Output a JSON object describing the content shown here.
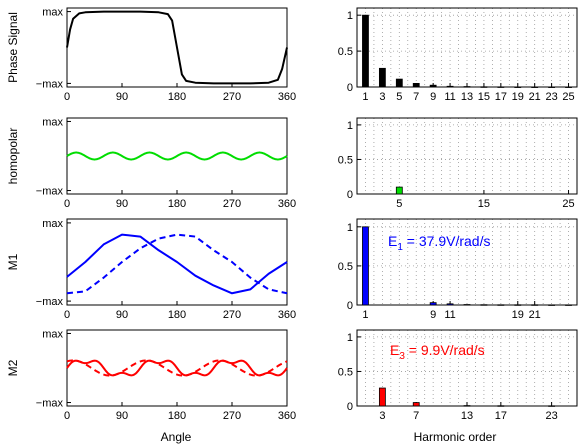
{
  "chart_data": [
    {
      "type": "line",
      "ylabel": "Phase Signal",
      "xlim": [
        0,
        360
      ],
      "xticks": [
        "0",
        "90",
        "180",
        "270",
        "360"
      ],
      "yticks": [
        "max",
        "−max"
      ],
      "grid": false,
      "series": [
        {
          "color": "#000000",
          "style": "solid",
          "x": [
            0,
            5,
            10,
            20,
            30,
            60,
            90,
            120,
            150,
            165,
            172,
            180,
            188,
            195,
            210,
            240,
            270,
            300,
            330,
            345,
            352,
            360
          ],
          "y": [
            0.0,
            0.5,
            0.8,
            0.95,
            0.98,
            1.0,
            1.0,
            1.0,
            0.98,
            0.93,
            0.75,
            0.0,
            -0.75,
            -0.93,
            -0.98,
            -1.0,
            -1.0,
            -1.0,
            -0.98,
            -0.9,
            -0.6,
            0.0
          ]
        }
      ]
    },
    {
      "type": "bar",
      "xticks": [
        "1",
        "3",
        "5",
        "7",
        "9",
        "11",
        "13",
        "15",
        "17",
        "19",
        "21",
        "23",
        "25"
      ],
      "yticks": [
        "0",
        "0.5",
        "1"
      ],
      "ylim": [
        0,
        1.1
      ],
      "grid": true,
      "series": [
        {
          "color": "#000000",
          "x": [
            1,
            3,
            5,
            7,
            9,
            11,
            13,
            15,
            17,
            19,
            21,
            23,
            25
          ],
          "values": [
            1.0,
            0.26,
            0.11,
            0.05,
            0.025,
            0.01,
            0.006,
            0.003,
            0.002,
            0.001,
            0.001,
            0.001,
            0.001
          ]
        }
      ]
    },
    {
      "type": "line",
      "ylabel": "homopolar",
      "xlim": [
        0,
        360
      ],
      "xticks": [
        "0",
        "90",
        "180",
        "270",
        "360"
      ],
      "yticks": [
        "max",
        "−max"
      ],
      "grid": false,
      "series": [
        {
          "color": "#00dd00",
          "style": "solid",
          "offset": 0.0,
          "amplitude": 0.1,
          "harmonic": 6
        }
      ]
    },
    {
      "type": "bar",
      "xticks": [
        "5",
        "15",
        "25"
      ],
      "yticks": [
        "0",
        "0.5",
        "1"
      ],
      "ylim": [
        0,
        1.1
      ],
      "grid": true,
      "series": [
        {
          "color": "#00dd00",
          "x": [
            5
          ],
          "values": [
            0.1
          ]
        }
      ]
    },
    {
      "type": "line",
      "ylabel": "M1",
      "xlim": [
        0,
        360
      ],
      "xticks": [
        "0",
        "90",
        "180",
        "270",
        "360"
      ],
      "yticks": [
        "max",
        "−max"
      ],
      "grid": false,
      "series": [
        {
          "color": "#0000ff",
          "style": "solid",
          "x": [
            0,
            30,
            60,
            90,
            120,
            150,
            180,
            210,
            240,
            270,
            300,
            330,
            360
          ],
          "y": [
            -0.38,
            0.0,
            0.45,
            0.7,
            0.65,
            0.3,
            0.0,
            -0.35,
            -0.6,
            -0.8,
            -0.7,
            -0.3,
            0.0
          ]
        },
        {
          "color": "#0000ff",
          "style": "dashed",
          "x": [
            0,
            30,
            60,
            90,
            120,
            150,
            180,
            210,
            240,
            270,
            300,
            330,
            360
          ],
          "y": [
            -0.8,
            -0.75,
            -0.4,
            0.0,
            0.35,
            0.6,
            0.7,
            0.65,
            0.3,
            0.0,
            -0.4,
            -0.7,
            -0.8
          ]
        }
      ]
    },
    {
      "type": "bar",
      "xticks": [
        "1",
        "9",
        "11",
        "19",
        "21"
      ],
      "yticks": [
        "0",
        "0.5",
        "1"
      ],
      "ylim": [
        0,
        1.1
      ],
      "grid": true,
      "annotation": {
        "main": "E",
        "sub": "1",
        "rest": " = 37.9V/rad/s",
        "color": "#0000ff"
      },
      "series": [
        {
          "color": "#0000ff",
          "x": [
            1,
            9,
            11,
            13,
            15,
            17,
            19,
            21,
            23,
            25
          ],
          "values": [
            1.0,
            0.03,
            0.015,
            0.006,
            0.004,
            0.003,
            0.003,
            0.003,
            0.002,
            0.002
          ]
        }
      ]
    },
    {
      "type": "line",
      "ylabel": "M2",
      "xlim": [
        0,
        360
      ],
      "xticks": [
        "0",
        "90",
        "180",
        "270",
        "360"
      ],
      "yticks": [
        "max",
        "−max"
      ],
      "grid": false,
      "series": [
        {
          "color": "#ff0000",
          "style": "solid",
          "offset": 0.0,
          "amplitude": 0.22,
          "harmonic": 3,
          "amplitude2": 0.08,
          "harmonic2": 9
        },
        {
          "color": "#ff0000",
          "style": "dashed",
          "offset": 0.0,
          "amplitude": 0.22,
          "harmonic": 3,
          "phase_deg": 60
        }
      ]
    },
    {
      "type": "bar",
      "xticks": [
        "3",
        "7",
        "13",
        "17",
        "23"
      ],
      "yticks": [
        "0",
        "0.5",
        "1"
      ],
      "ylim": [
        0,
        1.1
      ],
      "grid": true,
      "annotation": {
        "main": "E",
        "sub": "3",
        "rest": " = 9.9V/rad/s",
        "color": "#ff0000"
      },
      "series": [
        {
          "color": "#ff0000",
          "x": [
            3,
            7,
            13,
            17,
            23
          ],
          "values": [
            0.26,
            0.05,
            0.006,
            0.004,
            0.003
          ]
        }
      ]
    }
  ],
  "xlabel_left": "Angle",
  "xlabel_right": "Harmonic order"
}
